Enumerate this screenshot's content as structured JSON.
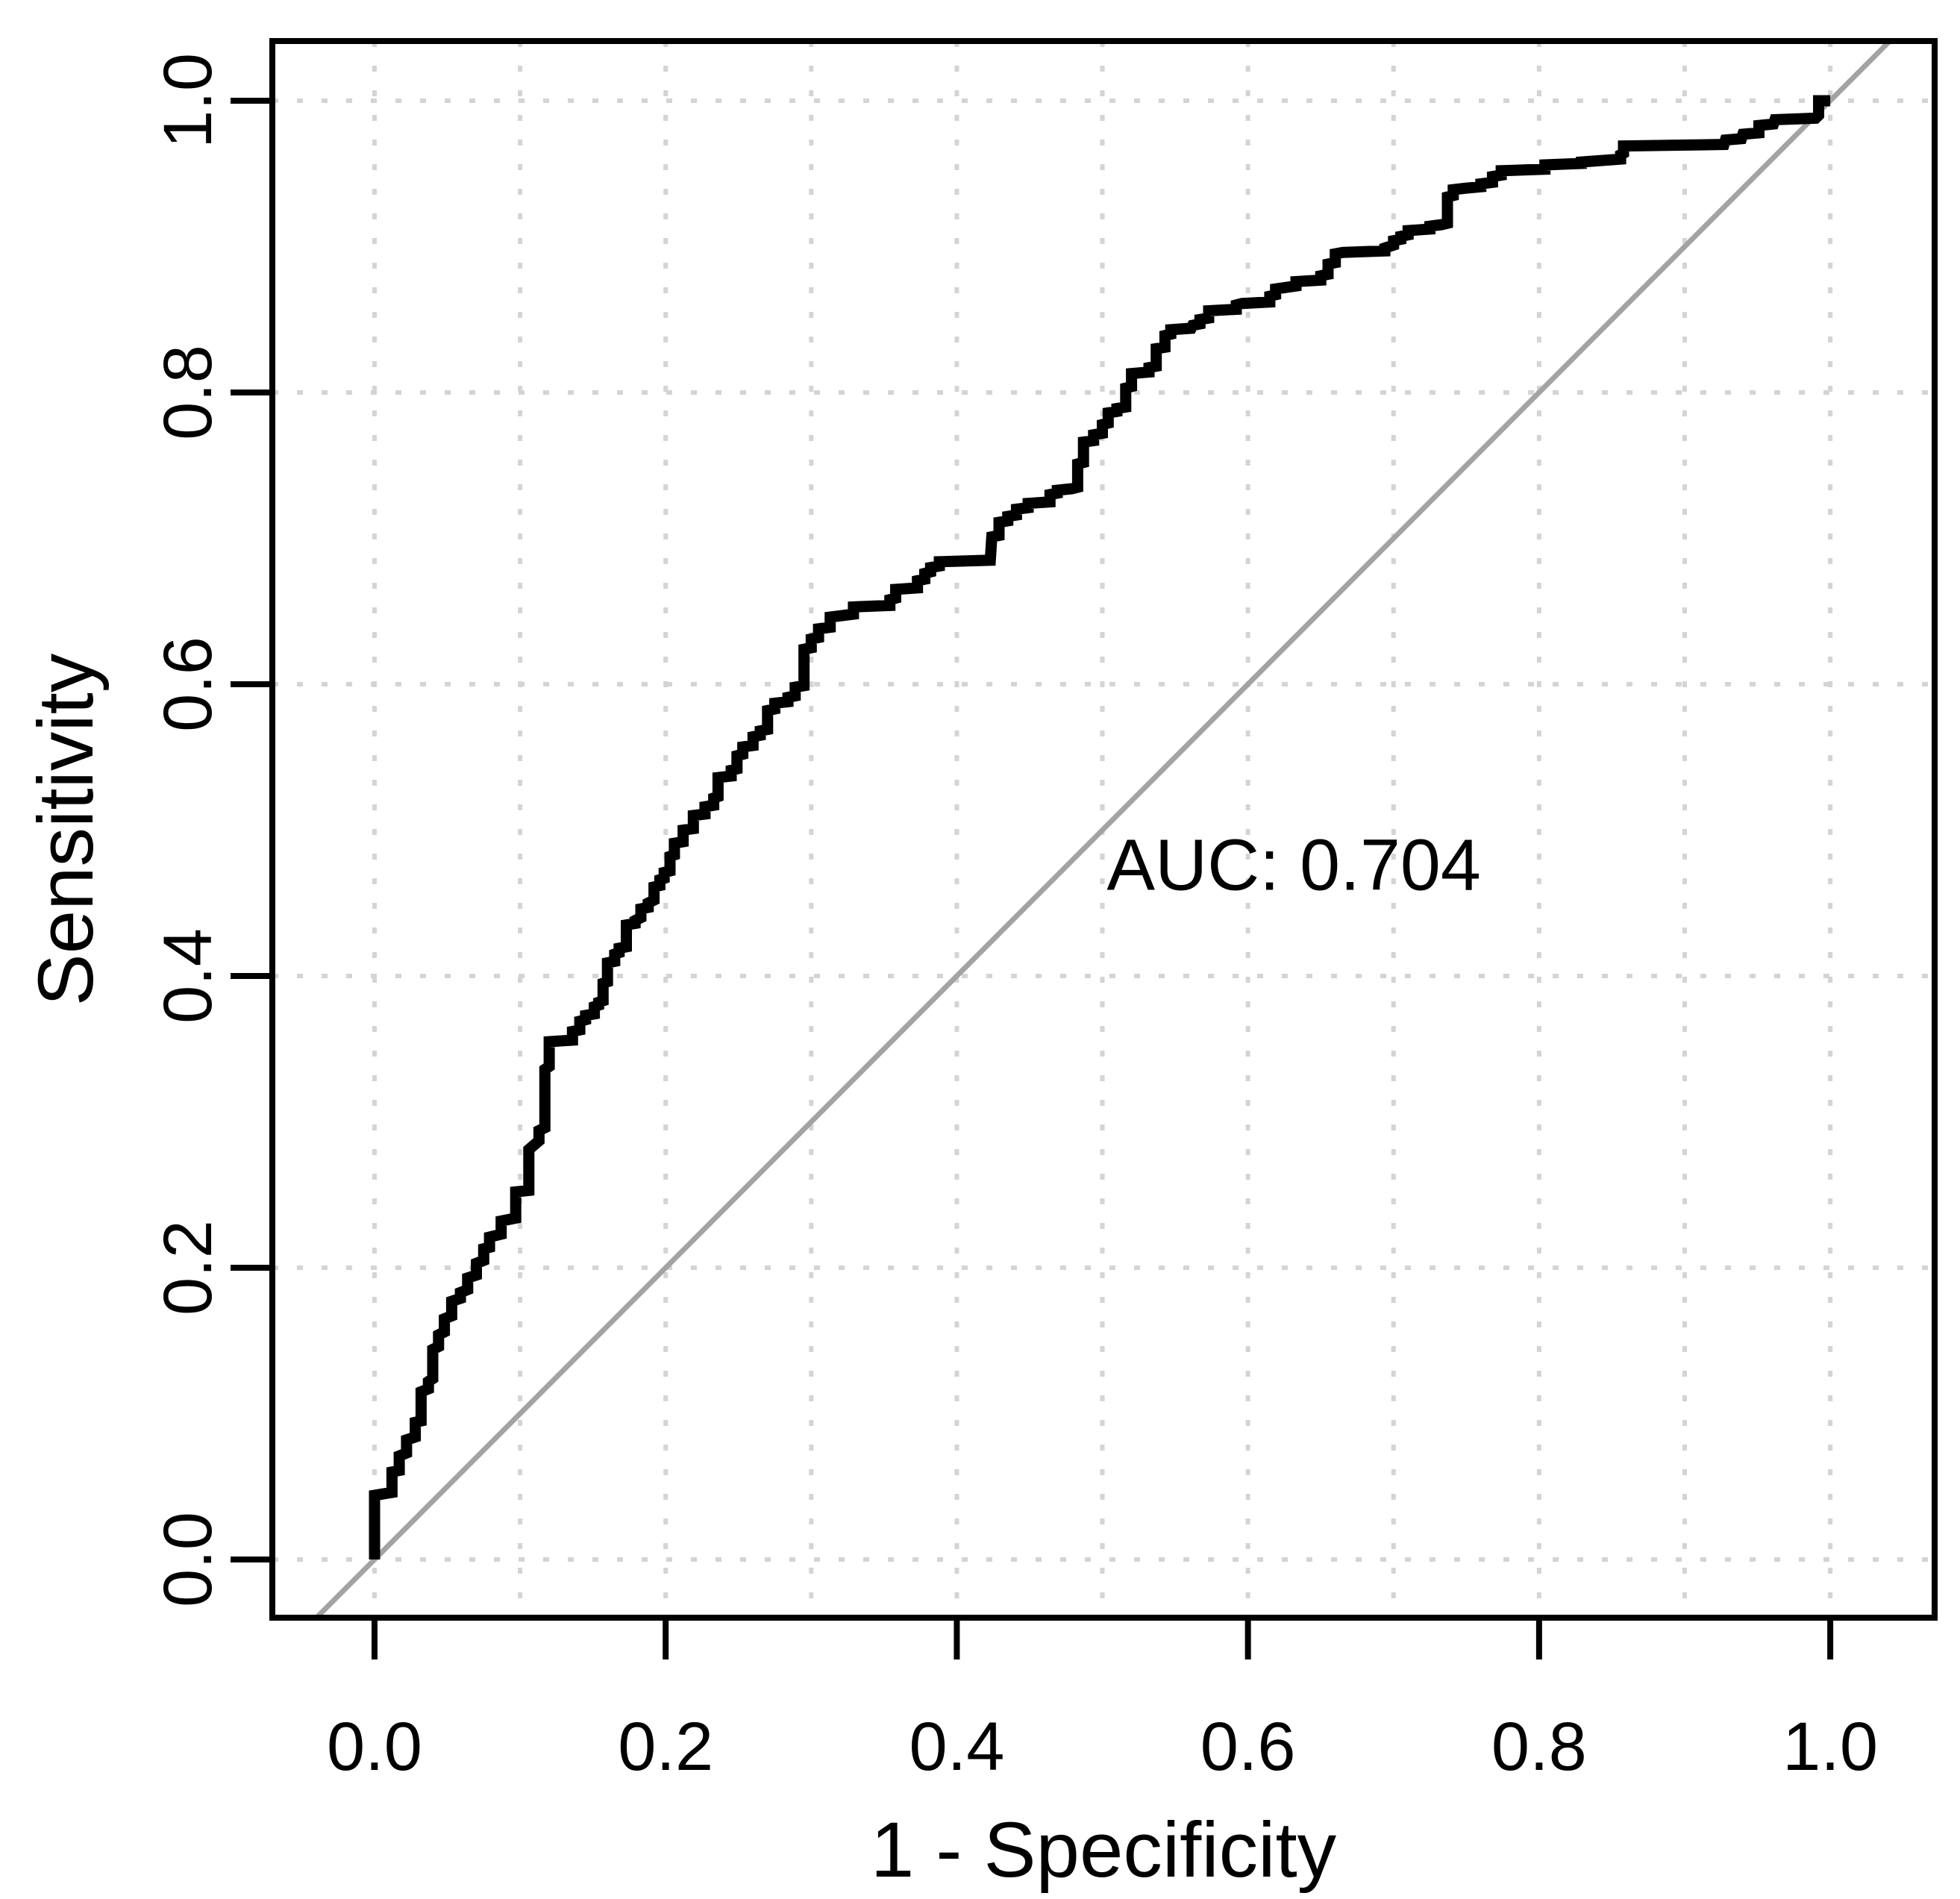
{
  "chart_data": {
    "type": "line",
    "subtype": "roc-curve-step",
    "title": "",
    "xlabel": "1 - Specificity",
    "ylabel": "Sensitivity",
    "x_tick_labels": [
      "0.0",
      "0.2",
      "0.4",
      "0.6",
      "0.8",
      "1.0"
    ],
    "x_tick_values": [
      0.0,
      0.2,
      0.4,
      0.6,
      0.8,
      1.0
    ],
    "y_tick_labels": [
      "0.0",
      "0.2",
      "0.4",
      "0.6",
      "0.8",
      "1.0"
    ],
    "y_tick_values": [
      0.0,
      0.2,
      0.4,
      0.6,
      0.8,
      1.0
    ],
    "x_grid_values": [
      0.0,
      0.1,
      0.2,
      0.3,
      0.4,
      0.5,
      0.6,
      0.7,
      0.8,
      0.9,
      1.0
    ],
    "y_grid_values": [
      0.0,
      0.2,
      0.4,
      0.6,
      0.8,
      1.0
    ],
    "xlim": [
      -0.0702,
      1.0717
    ],
    "ylim": [
      -0.0399,
      1.0409
    ],
    "grid_on": true,
    "legend": "none",
    "annotation": {
      "text": "AUC: 0.704",
      "x": 0.503,
      "y": 0.459,
      "anchor": "start"
    },
    "auc_value": 0.704,
    "reference_line": {
      "name": "chance-diagonal",
      "from": [
        -0.04,
        -0.04
      ],
      "to": [
        1.041,
        1.041
      ]
    },
    "colors": {
      "curve": "#000000",
      "diagonal": "#a3a3a3",
      "grid": "#d4d4d4",
      "box": "#000000",
      "text": "#000000",
      "background": "#ffffff"
    },
    "series": [
      {
        "name": "roc-curve",
        "points": [
          [
            0,
            0
          ],
          [
            0,
            0.044
          ],
          [
            0.012,
            0.046
          ],
          [
            0.012,
            0.06
          ],
          [
            0.017,
            0.061
          ],
          [
            0.017,
            0.071
          ],
          [
            0.022,
            0.073
          ],
          [
            0.022,
            0.082
          ],
          [
            0.028,
            0.084
          ],
          [
            0.028,
            0.094
          ],
          [
            0.032,
            0.095
          ],
          [
            0.032,
            0.115
          ],
          [
            0.037,
            0.117
          ],
          [
            0.037,
            0.122
          ],
          [
            0.04,
            0.124
          ],
          [
            0.04,
            0.144
          ],
          [
            0.044,
            0.146
          ],
          [
            0.044,
            0.154
          ],
          [
            0.048,
            0.156
          ],
          [
            0.048,
            0.165
          ],
          [
            0.053,
            0.167
          ],
          [
            0.053,
            0.177
          ],
          [
            0.059,
            0.179
          ],
          [
            0.059,
            0.183
          ],
          [
            0.064,
            0.185
          ],
          [
            0.064,
            0.193
          ],
          [
            0.07,
            0.195
          ],
          [
            0.07,
            0.203
          ],
          [
            0.075,
            0.205
          ],
          [
            0.075,
            0.213
          ],
          [
            0.079,
            0.214
          ],
          [
            0.079,
            0.221
          ],
          [
            0.087,
            0.223
          ],
          [
            0.087,
            0.232
          ],
          [
            0.097,
            0.234
          ],
          [
            0.097,
            0.252
          ],
          [
            0.106,
            0.253
          ],
          [
            0.106,
            0.281
          ],
          [
            0.113,
            0.287
          ],
          [
            0.113,
            0.294
          ],
          [
            0.117,
            0.296
          ],
          [
            0.117,
            0.336
          ],
          [
            0.12,
            0.338
          ],
          [
            0.12,
            0.355
          ],
          [
            0.136,
            0.356
          ],
          [
            0.136,
            0.362
          ],
          [
            0.141,
            0.363
          ],
          [
            0.141,
            0.369
          ],
          [
            0.145,
            0.37
          ],
          [
            0.145,
            0.373
          ],
          [
            0.151,
            0.374
          ],
          [
            0.151,
            0.379
          ],
          [
            0.154,
            0.38
          ],
          [
            0.154,
            0.382
          ],
          [
            0.157,
            0.383
          ],
          [
            0.157,
            0.395
          ],
          [
            0.16,
            0.396
          ],
          [
            0.16,
            0.409
          ],
          [
            0.165,
            0.41
          ],
          [
            0.165,
            0.415
          ],
          [
            0.168,
            0.416
          ],
          [
            0.168,
            0.419
          ],
          [
            0.173,
            0.42
          ],
          [
            0.173,
            0.435
          ],
          [
            0.179,
            0.436
          ],
          [
            0.179,
            0.438
          ],
          [
            0.183,
            0.44
          ],
          [
            0.183,
            0.446
          ],
          [
            0.188,
            0.447
          ],
          [
            0.188,
            0.45
          ],
          [
            0.192,
            0.452
          ],
          [
            0.192,
            0.461
          ],
          [
            0.196,
            0.462
          ],
          [
            0.196,
            0.466
          ],
          [
            0.199,
            0.467
          ],
          [
            0.199,
            0.471
          ],
          [
            0.203,
            0.472
          ],
          [
            0.203,
            0.482
          ],
          [
            0.206,
            0.483
          ],
          [
            0.206,
            0.491
          ],
          [
            0.212,
            0.492
          ],
          [
            0.212,
            0.5
          ],
          [
            0.219,
            0.501
          ],
          [
            0.219,
            0.51
          ],
          [
            0.227,
            0.511
          ],
          [
            0.227,
            0.516
          ],
          [
            0.233,
            0.517
          ],
          [
            0.233,
            0.522
          ],
          [
            0.236,
            0.523
          ],
          [
            0.236,
            0.536
          ],
          [
            0.245,
            0.537
          ],
          [
            0.245,
            0.541
          ],
          [
            0.249,
            0.542
          ],
          [
            0.249,
            0.551
          ],
          [
            0.253,
            0.552
          ],
          [
            0.253,
            0.557
          ],
          [
            0.26,
            0.558
          ],
          [
            0.26,
            0.564
          ],
          [
            0.265,
            0.565
          ],
          [
            0.265,
            0.568
          ],
          [
            0.27,
            0.569
          ],
          [
            0.27,
            0.582
          ],
          [
            0.275,
            0.583
          ],
          [
            0.275,
            0.587
          ],
          [
            0.284,
            0.588
          ],
          [
            0.284,
            0.591
          ],
          [
            0.289,
            0.592
          ],
          [
            0.289,
            0.598
          ],
          [
            0.295,
            0.599
          ],
          [
            0.295,
            0.624
          ],
          [
            0.3,
            0.625
          ],
          [
            0.3,
            0.631
          ],
          [
            0.305,
            0.632
          ],
          [
            0.305,
            0.638
          ],
          [
            0.313,
            0.639
          ],
          [
            0.313,
            0.646
          ],
          [
            0.329,
            0.648
          ],
          [
            0.329,
            0.653
          ],
          [
            0.354,
            0.654
          ],
          [
            0.354,
            0.658
          ],
          [
            0.358,
            0.659
          ],
          [
            0.358,
            0.665
          ],
          [
            0.373,
            0.666
          ],
          [
            0.373,
            0.671
          ],
          [
            0.378,
            0.672
          ],
          [
            0.378,
            0.676
          ],
          [
            0.382,
            0.677
          ],
          [
            0.382,
            0.68
          ],
          [
            0.388,
            0.681
          ],
          [
            0.388,
            0.684
          ],
          [
            0.423,
            0.685
          ],
          [
            0.424,
            0.701
          ],
          [
            0.429,
            0.702
          ],
          [
            0.429,
            0.711
          ],
          [
            0.435,
            0.712
          ],
          [
            0.435,
            0.715
          ],
          [
            0.441,
            0.716
          ],
          [
            0.441,
            0.72
          ],
          [
            0.449,
            0.721
          ],
          [
            0.449,
            0.724
          ],
          [
            0.464,
            0.725
          ],
          [
            0.464,
            0.73
          ],
          [
            0.469,
            0.731
          ],
          [
            0.469,
            0.733
          ],
          [
            0.479,
            0.734
          ],
          [
            0.483,
            0.735
          ],
          [
            0.483,
            0.751
          ],
          [
            0.487,
            0.752
          ],
          [
            0.487,
            0.766
          ],
          [
            0.494,
            0.767
          ],
          [
            0.494,
            0.771
          ],
          [
            0.5,
            0.772
          ],
          [
            0.5,
            0.778
          ],
          [
            0.504,
            0.779
          ],
          [
            0.504,
            0.786
          ],
          [
            0.51,
            0.787
          ],
          [
            0.51,
            0.789
          ],
          [
            0.516,
            0.79
          ],
          [
            0.516,
            0.803
          ],
          [
            0.52,
            0.804
          ],
          [
            0.52,
            0.813
          ],
          [
            0.532,
            0.814
          ],
          [
            0.532,
            0.817
          ],
          [
            0.537,
            0.818
          ],
          [
            0.537,
            0.83
          ],
          [
            0.543,
            0.831
          ],
          [
            0.543,
            0.839
          ],
          [
            0.547,
            0.84
          ],
          [
            0.547,
            0.843
          ],
          [
            0.561,
            0.844
          ],
          [
            0.562,
            0.846
          ],
          [
            0.567,
            0.847
          ],
          [
            0.567,
            0.85
          ],
          [
            0.573,
            0.851
          ],
          [
            0.573,
            0.856
          ],
          [
            0.592,
            0.857
          ],
          [
            0.592,
            0.86
          ],
          [
            0.596,
            0.861
          ],
          [
            0.615,
            0.862
          ],
          [
            0.615,
            0.866
          ],
          [
            0.619,
            0.867
          ],
          [
            0.619,
            0.871
          ],
          [
            0.633,
            0.873
          ],
          [
            0.633,
            0.876
          ],
          [
            0.65,
            0.877
          ],
          [
            0.65,
            0.88
          ],
          [
            0.655,
            0.881
          ],
          [
            0.655,
            0.888
          ],
          [
            0.66,
            0.889
          ],
          [
            0.66,
            0.895
          ],
          [
            0.665,
            0.896
          ],
          [
            0.694,
            0.897
          ],
          [
            0.694,
            0.899
          ],
          [
            0.7,
            0.901
          ],
          [
            0.7,
            0.904
          ],
          [
            0.705,
            0.905
          ],
          [
            0.705,
            0.907
          ],
          [
            0.71,
            0.908
          ],
          [
            0.71,
            0.911
          ],
          [
            0.725,
            0.912
          ],
          [
            0.725,
            0.914
          ],
          [
            0.733,
            0.915
          ],
          [
            0.737,
            0.916
          ],
          [
            0.737,
            0.934
          ],
          [
            0.741,
            0.935
          ],
          [
            0.741,
            0.939
          ],
          [
            0.749,
            0.94
          ],
          [
            0.76,
            0.941
          ],
          [
            0.76,
            0.943
          ],
          [
            0.768,
            0.944
          ],
          [
            0.768,
            0.948
          ],
          [
            0.774,
            0.949
          ],
          [
            0.774,
            0.952
          ],
          [
            0.804,
            0.953
          ],
          [
            0.804,
            0.956
          ],
          [
            0.829,
            0.957
          ],
          [
            0.829,
            0.958
          ],
          [
            0.856,
            0.96
          ],
          [
            0.856,
            0.963
          ],
          [
            0.858,
            0.964
          ],
          [
            0.858,
            0.969
          ],
          [
            0.927,
            0.97
          ],
          [
            0.928,
            0.973
          ],
          [
            0.939,
            0.974
          ],
          [
            0.94,
            0.977
          ],
          [
            0.951,
            0.978
          ],
          [
            0.951,
            0.983
          ],
          [
            0.961,
            0.984
          ],
          [
            0.962,
            0.987
          ],
          [
            0.99,
            0.988
          ],
          [
            0.992,
            0.99
          ],
          [
            0.992,
            1
          ],
          [
            1,
            1
          ]
        ]
      }
    ]
  }
}
